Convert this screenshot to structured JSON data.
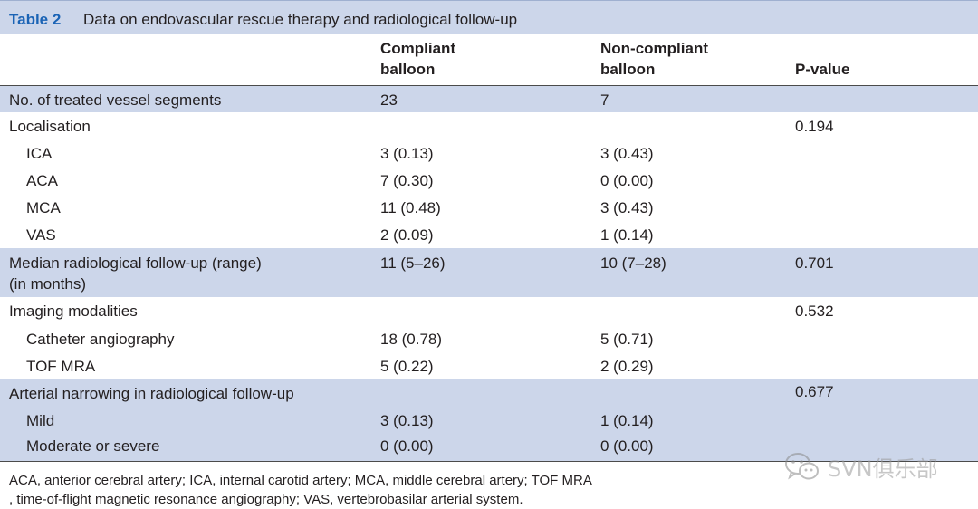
{
  "table": {
    "label": "Table 2",
    "title": "Data on endovascular rescue therapy and radiological follow-up",
    "headers": {
      "col1_line1": "Compliant",
      "col1_line2": "balloon",
      "col2_line1": "Non-compliant",
      "col2_line2": "balloon",
      "col3": "P-value"
    },
    "rows": [
      {
        "label": "No. of treated vessel segments",
        "c1": "23",
        "c2": " 7",
        "p": ""
      },
      {
        "label": "Localisation",
        "c1": "",
        "c2": "",
        "p": "0.194"
      },
      {
        "label": "ICA",
        "c1": "3 (0.13)",
        "c2": "3 (0.43)",
        "p": ""
      },
      {
        "label": "ACA",
        "c1": "7 (0.30)",
        "c2": "0 (0.00)",
        "p": ""
      },
      {
        "label": "MCA",
        "c1": "11 (0.48)",
        "c2": "3 (0.43)",
        "p": ""
      },
      {
        "label": "VAS",
        "c1": "2 (0.09)",
        "c2": "1 (0.14)",
        "p": ""
      },
      {
        "label": "Median radiological follow-up (range)",
        "label2": "(in months)",
        "c1": "11 (5–26)",
        "c2": "10 (7–28)",
        "p": "0.701"
      },
      {
        "label": "Imaging modalities",
        "c1": "",
        "c2": "",
        "p": "0.532"
      },
      {
        "label": "Catheter angiography",
        "c1": "18 (0.78)",
        "c2": "5 (0.71)",
        "p": ""
      },
      {
        "label": "TOF MRA",
        "c1": "5 (0.22)",
        "c2": "2 (0.29)",
        "p": ""
      },
      {
        "label": "Arterial narrowing in radiological follow-up",
        "c1": "",
        "c2": "",
        "p": "0.677"
      },
      {
        "label": "Mild",
        "c1": "3 (0.13)",
        "c2": "1 (0.14)",
        "p": ""
      },
      {
        "label": "Moderate or severe",
        "c1": "0 (0.00)",
        "c2": "0 (0.00)",
        "p": ""
      }
    ],
    "footnote_line1": "ACA, anterior cerebral artery; ICA, internal carotid artery; MCA, middle cerebral artery; TOF MRA",
    "footnote_line2": ", time-of-flight magnetic resonance angiography; VAS, vertebrobasilar arterial system."
  },
  "watermark": {
    "text": "SVN俱乐部",
    "icon": "wechat-icon"
  },
  "colors": {
    "accent": "#1a63b5",
    "shade": "#ccd6ea"
  }
}
